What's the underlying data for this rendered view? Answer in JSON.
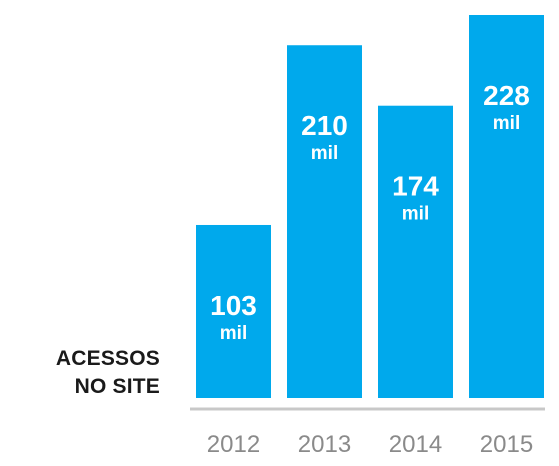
{
  "chart_data": {
    "type": "bar",
    "categories": [
      "2012",
      "2013",
      "2014",
      "2015"
    ],
    "values": [
      103,
      210,
      174,
      228
    ],
    "unit": "mil",
    "ylabel_lines": [
      "ACESSOS",
      "NO SITE"
    ],
    "title": "",
    "xlabel": "",
    "ylim": [
      0,
      228
    ],
    "grid": false,
    "legend": "none",
    "bar_color": "#00a9ec",
    "label_color": "#ffffff",
    "axis_color": "#c8c8c8",
    "tick_label_color": "#8a8a8a"
  }
}
